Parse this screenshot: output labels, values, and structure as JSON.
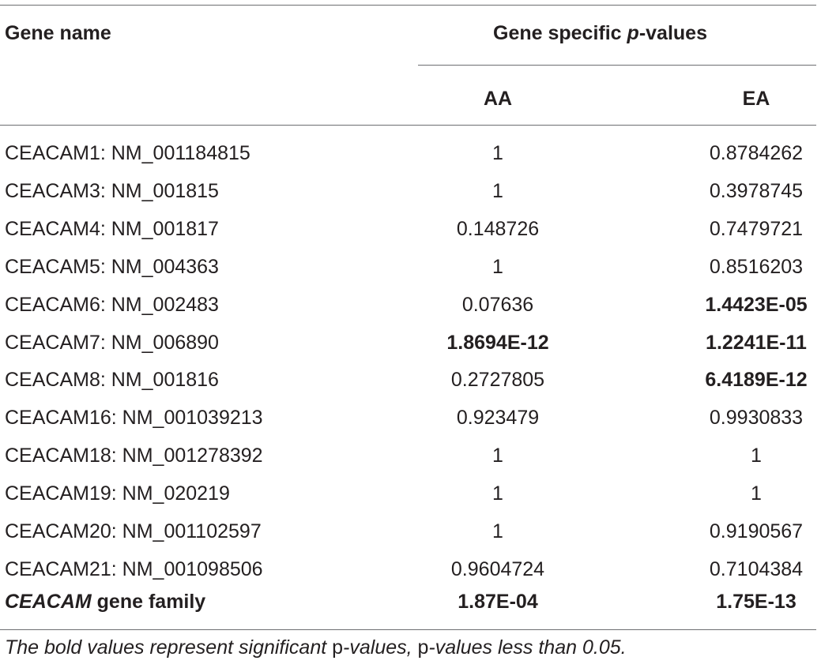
{
  "table": {
    "header": {
      "gene_name": "Gene name",
      "group_prefix": "Gene specific ",
      "group_p": "p",
      "group_suffix": "-values",
      "col_aa": "AA",
      "col_ea": "EA"
    },
    "rows": [
      {
        "name": "CEACAM1: NM_001184815",
        "aa": "1",
        "ea": "0.8784262",
        "aa_bold": false,
        "ea_bold": false
      },
      {
        "name": "CEACAM3: NM_001815",
        "aa": "1",
        "ea": "0.3978745",
        "aa_bold": false,
        "ea_bold": false
      },
      {
        "name": "CEACAM4: NM_001817",
        "aa": "0.148726",
        "ea": "0.7479721",
        "aa_bold": false,
        "ea_bold": false
      },
      {
        "name": "CEACAM5: NM_004363",
        "aa": "1",
        "ea": "0.8516203",
        "aa_bold": false,
        "ea_bold": false
      },
      {
        "name": "CEACAM6: NM_002483",
        "aa": "0.07636",
        "ea": "1.4423E-05",
        "aa_bold": false,
        "ea_bold": true
      },
      {
        "name": "CEACAM7: NM_006890",
        "aa": "1.8694E-12",
        "ea": "1.2241E-11",
        "aa_bold": true,
        "ea_bold": true
      },
      {
        "name": "CEACAM8: NM_001816",
        "aa": "0.2727805",
        "ea": "6.4189E-12",
        "aa_bold": false,
        "ea_bold": true
      },
      {
        "name": "CEACAM16: NM_001039213",
        "aa": "0.923479",
        "ea": "0.9930833",
        "aa_bold": false,
        "ea_bold": false
      },
      {
        "name": "CEACAM18: NM_001278392",
        "aa": "1",
        "ea": "1",
        "aa_bold": false,
        "ea_bold": false
      },
      {
        "name": "CEACAM19: NM_020219",
        "aa": "1",
        "ea": "1",
        "aa_bold": false,
        "ea_bold": false
      },
      {
        "name": "CEACAM20: NM_001102597",
        "aa": "1",
        "ea": "0.9190567",
        "aa_bold": false,
        "ea_bold": false
      },
      {
        "name": "CEACAM21: NM_001098506",
        "aa": "0.9604724",
        "ea": "0.7104384",
        "aa_bold": false,
        "ea_bold": false
      }
    ],
    "family_row": {
      "name_italic": "CEACAM",
      "name_rest": " gene family",
      "aa": "1.87E-04",
      "ea": "1.75E-13"
    },
    "footnote": {
      "part1": "The bold values represent significant ",
      "p1": "p",
      "part2": "-values, ",
      "p2": "p",
      "part3": "-values less than 0.05."
    }
  }
}
